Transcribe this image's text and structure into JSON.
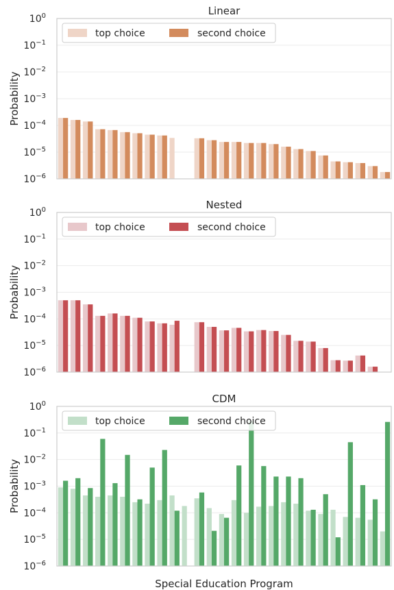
{
  "figure": {
    "xlabel": "Special Education Program"
  },
  "colors": {
    "Linear": {
      "top": "#efd5c7",
      "second": "#d38b5d"
    },
    "Nested": {
      "top": "#e8c8cb",
      "second": "#c44e52"
    },
    "CDM": {
      "top": "#c2dfc9",
      "second": "#55a868"
    },
    "grid": "#ebebeb",
    "spine": "#cccccc"
  },
  "chart_data": [
    {
      "type": "bar",
      "title": "Linear",
      "ylabel": "Probability",
      "xlabel": "",
      "yscale": "log",
      "ylim": [
        1e-06,
        1
      ],
      "yticks": [
        "10^0",
        "10^−1",
        "10^−2",
        "10^−3",
        "10^−4",
        "10^−5",
        "10^−6"
      ],
      "legend": {
        "placement": "top-left",
        "columns": 2
      },
      "grid": true,
      "series": [
        {
          "name": "top choice",
          "values": [
            0.00019,
            0.00016,
            0.00014,
            7.2e-05,
            6.7e-05,
            5.6e-05,
            5.1e-05,
            4.5e-05,
            4.2e-05,
            3.4e-05,
            null,
            3.3e-05,
            2.8e-05,
            2.4e-05,
            2.4e-05,
            2.2e-05,
            2.2e-05,
            2e-05,
            1.6e-05,
            1.3e-05,
            1.1e-05,
            7.5e-06,
            4.5e-06,
            4.2e-06,
            3.9e-06,
            3e-06,
            1.8e-06
          ]
        },
        {
          "name": "second choice",
          "values": [
            0.00019,
            0.00016,
            0.00014,
            7.2e-05,
            6.7e-05,
            5.6e-05,
            5.1e-05,
            4.5e-05,
            4.2e-05,
            null,
            null,
            3.3e-05,
            2.8e-05,
            2.4e-05,
            2.4e-05,
            2.2e-05,
            2.2e-05,
            2e-05,
            1.6e-05,
            1.3e-05,
            1.1e-05,
            7.5e-06,
            4.5e-06,
            4.2e-06,
            3.9e-06,
            3e-06,
            1.8e-06
          ]
        }
      ]
    },
    {
      "type": "bar",
      "title": "Nested",
      "ylabel": "Probability",
      "xlabel": "",
      "yscale": "log",
      "ylim": [
        1e-06,
        1
      ],
      "yticks": [
        "10^0",
        "10^−1",
        "10^−2",
        "10^−3",
        "10^−4",
        "10^−5",
        "10^−6"
      ],
      "legend": {
        "placement": "top-left",
        "columns": 2
      },
      "grid": true,
      "series": [
        {
          "name": "top choice",
          "values": [
            0.0005,
            0.0005,
            0.00035,
            0.00013,
            0.00016,
            0.00013,
            0.00011,
            8e-05,
            6.8e-05,
            6e-05,
            null,
            7.5e-05,
            5e-05,
            3.7e-05,
            4.6e-05,
            3.4e-05,
            3.8e-05,
            3.5e-05,
            2.5e-05,
            1.5e-05,
            1.4e-05,
            8e-06,
            2.8e-06,
            2.7e-06,
            4.2e-06,
            1.6e-06,
            null
          ]
        },
        {
          "name": "second choice",
          "values": [
            0.0005,
            0.0005,
            0.00035,
            0.00013,
            0.00016,
            0.00013,
            0.00011,
            8e-05,
            6.8e-05,
            8.5e-05,
            null,
            7.5e-05,
            5e-05,
            3.7e-05,
            4.6e-05,
            3.4e-05,
            3.8e-05,
            3.5e-05,
            2.5e-05,
            1.5e-05,
            1.4e-05,
            8e-06,
            2.8e-06,
            2.7e-06,
            4.2e-06,
            1.6e-06,
            null
          ]
        }
      ]
    },
    {
      "type": "bar",
      "title": "CDM",
      "ylabel": "Probability",
      "xlabel": "Special Education Program",
      "yscale": "log",
      "ylim": [
        1e-06,
        1
      ],
      "yticks": [
        "10^0",
        "10^−1",
        "10^−2",
        "10^−3",
        "10^−4",
        "10^−5",
        "10^−6"
      ],
      "legend": {
        "placement": "top-left",
        "columns": 2
      },
      "grid": true,
      "series": [
        {
          "name": "top choice",
          "values": [
            0.0009,
            0.0008,
            0.00045,
            0.0004,
            0.00045,
            0.0004,
            0.00025,
            0.00022,
            0.0003,
            0.00045,
            0.00018,
            0.00035,
            0.00015,
            9e-05,
            0.0003,
            0.0001,
            0.00017,
            0.00018,
            0.00025,
            0.00022,
            0.00012,
            9e-05,
            0.00013,
            7e-05,
            6.5e-05,
            5.5e-05,
            2e-05
          ]
        },
        {
          "name": "second choice",
          "values": [
            0.0016,
            0.002,
            0.00085,
            0.06,
            0.0013,
            0.015,
            0.00032,
            0.005,
            0.023,
            0.00012,
            null,
            0.00058,
            2.1e-05,
            6.5e-05,
            0.006,
            0.28,
            0.0057,
            0.0023,
            0.0023,
            0.002,
            0.00013,
            0.0005,
            1.2e-05,
            0.045,
            0.0011,
            0.00032,
            0.26
          ]
        }
      ]
    }
  ]
}
